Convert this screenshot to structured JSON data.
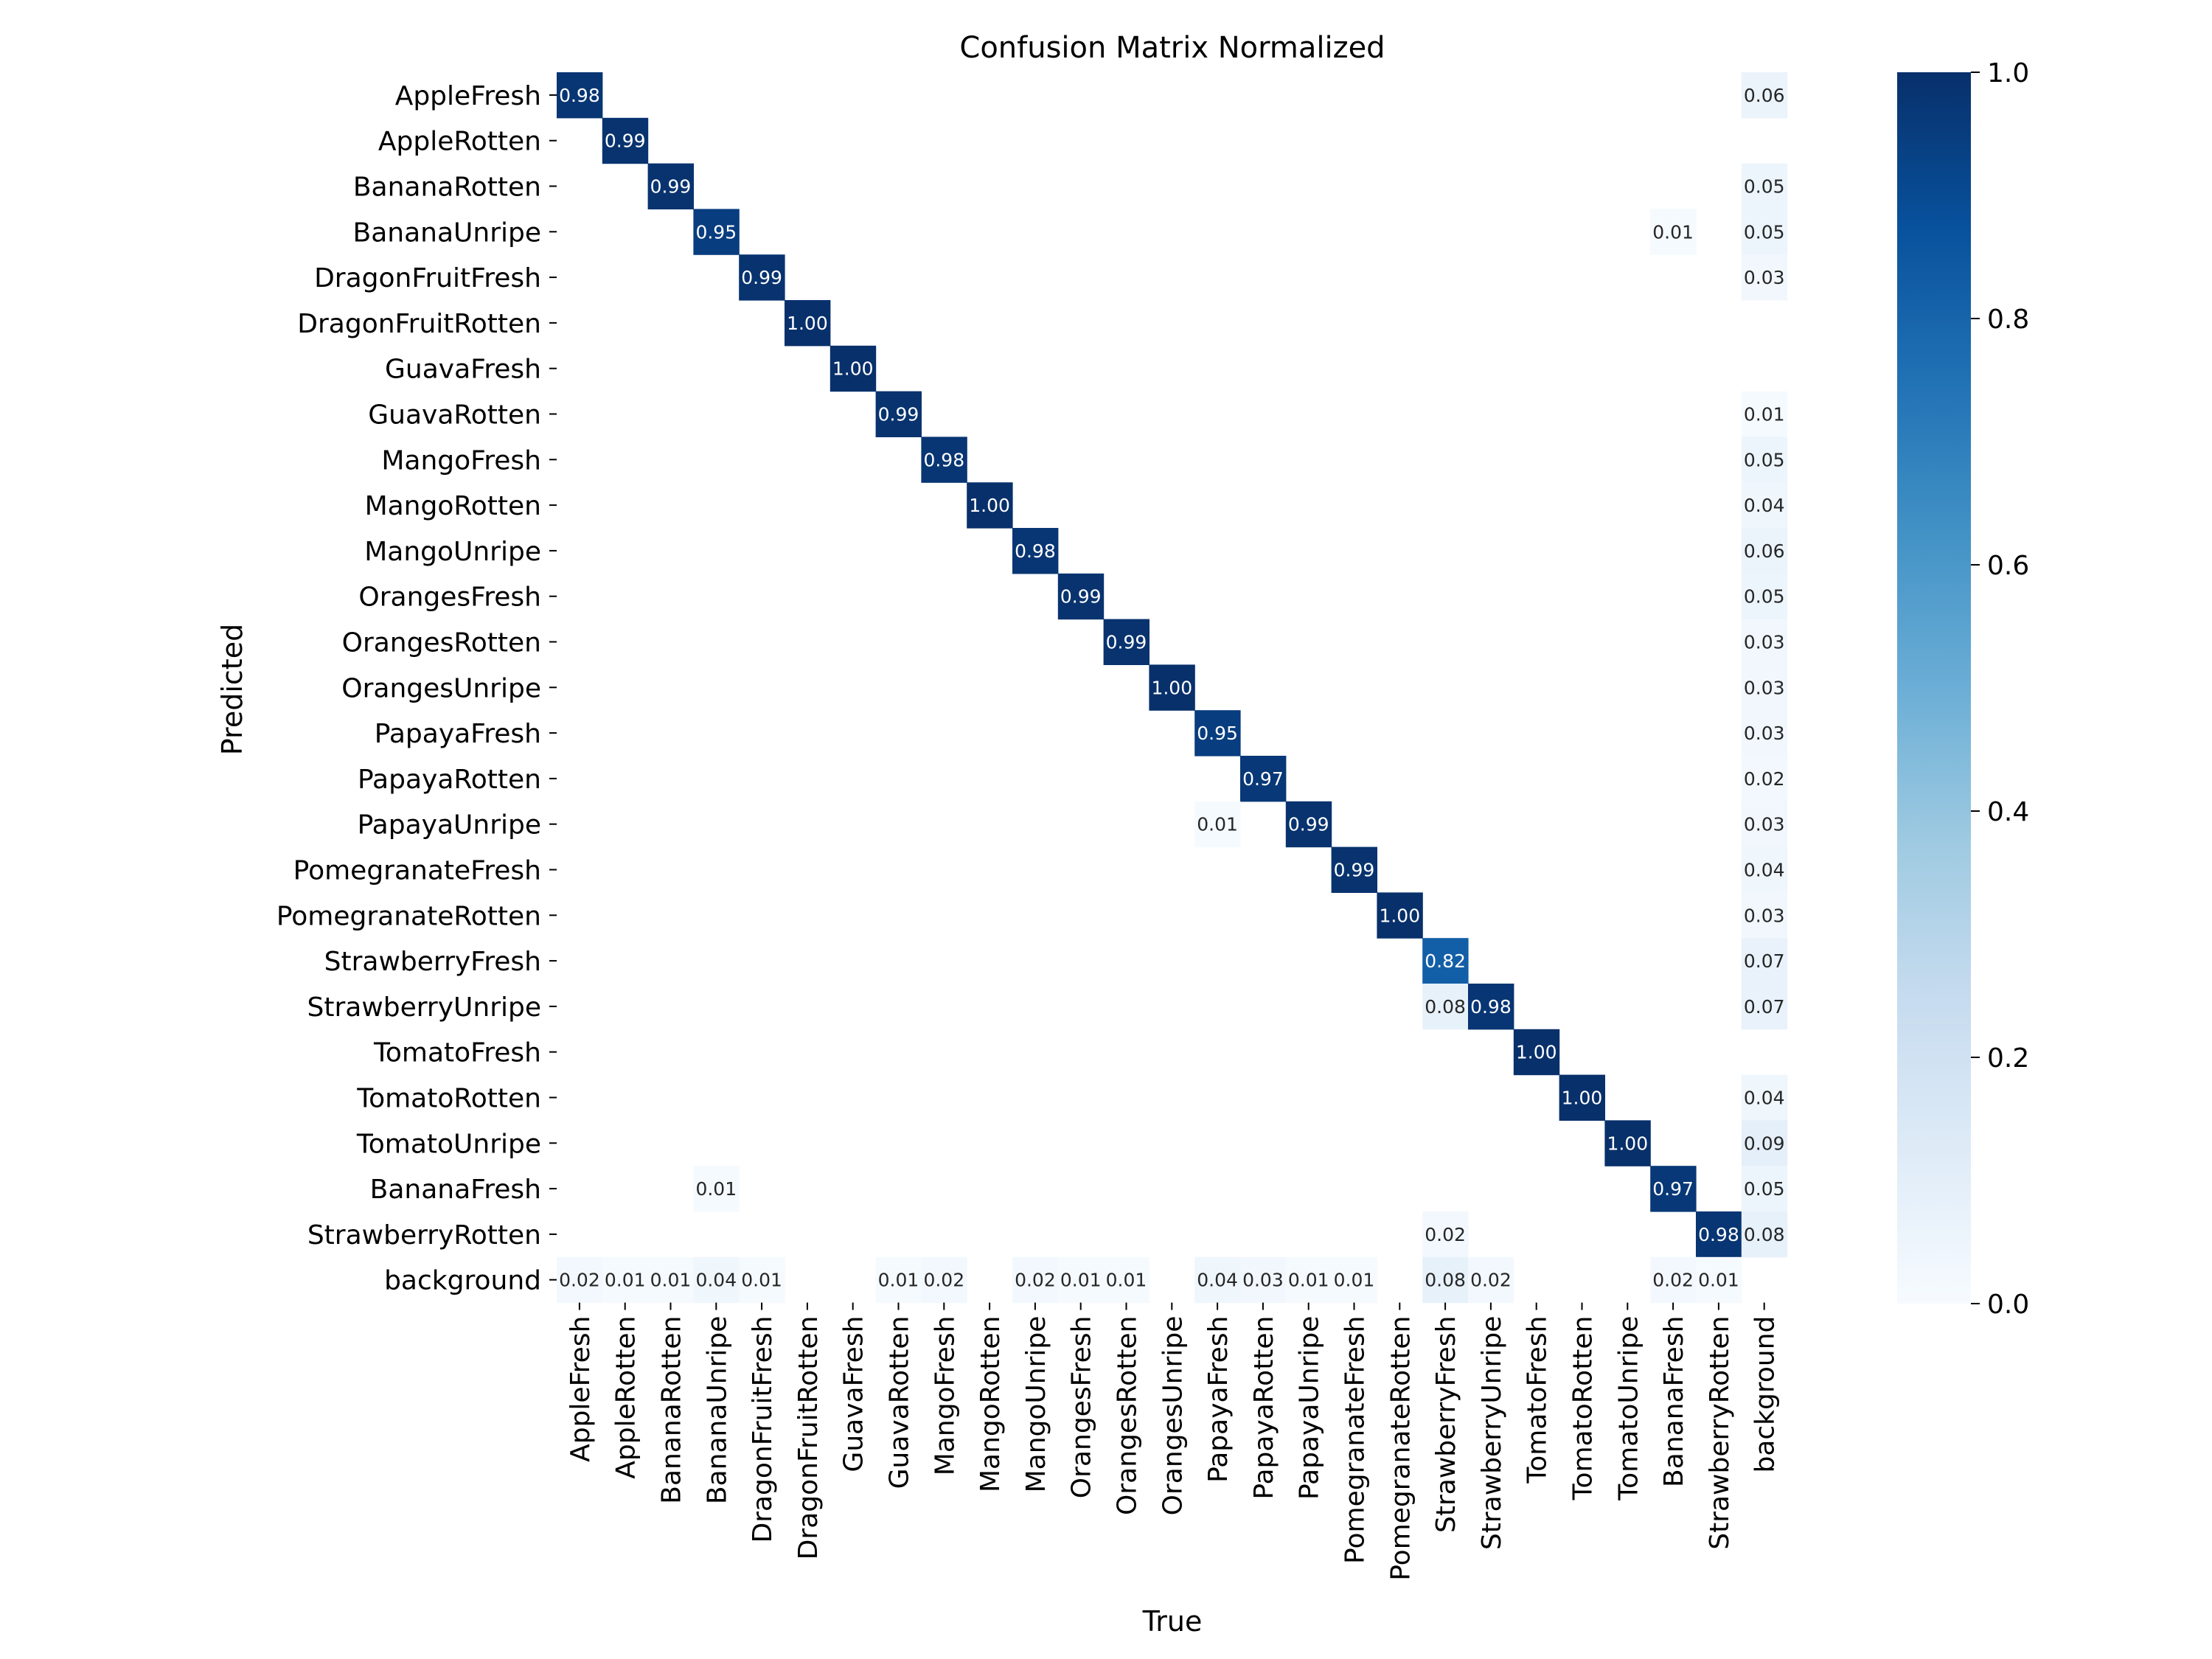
{
  "chart_data": {
    "type": "heatmap",
    "title": "Confusion Matrix Normalized",
    "xlabel": "True",
    "ylabel": "Predicted",
    "x_categories": [
      "AppleFresh",
      "AppleRotten",
      "BananaRotten",
      "BananaUnripe",
      "DragonFruitFresh",
      "DragonFruitRotten",
      "GuavaFresh",
      "GuavaRotten",
      "MangoFresh",
      "MangoRotten",
      "MangoUnripe",
      "OrangesFresh",
      "OrangesRotten",
      "OrangesUnripe",
      "PapayaFresh",
      "PapayaRotten",
      "PapayaUnripe",
      "PomegranateFresh",
      "PomegranateRotten",
      "StrawberryFresh",
      "StrawberryUnripe",
      "TomatoFresh",
      "TomatoRotten",
      "TomatoUnripe",
      "BananaFresh",
      "StrawberryRotten",
      "background"
    ],
    "y_categories": [
      "AppleFresh",
      "AppleRotten",
      "BananaRotten",
      "BananaUnripe",
      "DragonFruitFresh",
      "DragonFruitRotten",
      "GuavaFresh",
      "GuavaRotten",
      "MangoFresh",
      "MangoRotten",
      "MangoUnripe",
      "OrangesFresh",
      "OrangesRotten",
      "OrangesUnripe",
      "PapayaFresh",
      "PapayaRotten",
      "PapayaUnripe",
      "PomegranateFresh",
      "PomegranateRotten",
      "StrawberryFresh",
      "StrawberryUnripe",
      "TomatoFresh",
      "TomatoRotten",
      "TomatoUnripe",
      "BananaFresh",
      "StrawberryRotten",
      "background"
    ],
    "values": [
      [
        0.98,
        null,
        null,
        null,
        null,
        null,
        null,
        null,
        null,
        null,
        null,
        null,
        null,
        null,
        null,
        null,
        null,
        null,
        null,
        null,
        null,
        null,
        null,
        null,
        null,
        null,
        0.06
      ],
      [
        null,
        0.99,
        null,
        null,
        null,
        null,
        null,
        null,
        null,
        null,
        null,
        null,
        null,
        null,
        null,
        null,
        null,
        null,
        null,
        null,
        null,
        null,
        null,
        null,
        null,
        null,
        null
      ],
      [
        null,
        null,
        0.99,
        null,
        null,
        null,
        null,
        null,
        null,
        null,
        null,
        null,
        null,
        null,
        null,
        null,
        null,
        null,
        null,
        null,
        null,
        null,
        null,
        null,
        null,
        null,
        0.05
      ],
      [
        null,
        null,
        null,
        0.95,
        null,
        null,
        null,
        null,
        null,
        null,
        null,
        null,
        null,
        null,
        null,
        null,
        null,
        null,
        null,
        null,
        null,
        null,
        null,
        null,
        0.01,
        null,
        0.05
      ],
      [
        null,
        null,
        null,
        null,
        0.99,
        null,
        null,
        null,
        null,
        null,
        null,
        null,
        null,
        null,
        null,
        null,
        null,
        null,
        null,
        null,
        null,
        null,
        null,
        null,
        null,
        null,
        0.03
      ],
      [
        null,
        null,
        null,
        null,
        null,
        1.0,
        null,
        null,
        null,
        null,
        null,
        null,
        null,
        null,
        null,
        null,
        null,
        null,
        null,
        null,
        null,
        null,
        null,
        null,
        null,
        null,
        null
      ],
      [
        null,
        null,
        null,
        null,
        null,
        null,
        1.0,
        null,
        null,
        null,
        null,
        null,
        null,
        null,
        null,
        null,
        null,
        null,
        null,
        null,
        null,
        null,
        null,
        null,
        null,
        null,
        null
      ],
      [
        null,
        null,
        null,
        null,
        null,
        null,
        null,
        0.99,
        null,
        null,
        null,
        null,
        null,
        null,
        null,
        null,
        null,
        null,
        null,
        null,
        null,
        null,
        null,
        null,
        null,
        null,
        0.01
      ],
      [
        null,
        null,
        null,
        null,
        null,
        null,
        null,
        null,
        0.98,
        null,
        null,
        null,
        null,
        null,
        null,
        null,
        null,
        null,
        null,
        null,
        null,
        null,
        null,
        null,
        null,
        null,
        0.05
      ],
      [
        null,
        null,
        null,
        null,
        null,
        null,
        null,
        null,
        null,
        1.0,
        null,
        null,
        null,
        null,
        null,
        null,
        null,
        null,
        null,
        null,
        null,
        null,
        null,
        null,
        null,
        null,
        0.04
      ],
      [
        null,
        null,
        null,
        null,
        null,
        null,
        null,
        null,
        null,
        null,
        0.98,
        null,
        null,
        null,
        null,
        null,
        null,
        null,
        null,
        null,
        null,
        null,
        null,
        null,
        null,
        null,
        0.06
      ],
      [
        null,
        null,
        null,
        null,
        null,
        null,
        null,
        null,
        null,
        null,
        null,
        0.99,
        null,
        null,
        null,
        null,
        null,
        null,
        null,
        null,
        null,
        null,
        null,
        null,
        null,
        null,
        0.05
      ],
      [
        null,
        null,
        null,
        null,
        null,
        null,
        null,
        null,
        null,
        null,
        null,
        null,
        0.99,
        null,
        null,
        null,
        null,
        null,
        null,
        null,
        null,
        null,
        null,
        null,
        null,
        null,
        0.03
      ],
      [
        null,
        null,
        null,
        null,
        null,
        null,
        null,
        null,
        null,
        null,
        null,
        null,
        null,
        1.0,
        null,
        null,
        null,
        null,
        null,
        null,
        null,
        null,
        null,
        null,
        null,
        null,
        0.03
      ],
      [
        null,
        null,
        null,
        null,
        null,
        null,
        null,
        null,
        null,
        null,
        null,
        null,
        null,
        null,
        0.95,
        null,
        null,
        null,
        null,
        null,
        null,
        null,
        null,
        null,
        null,
        null,
        0.03
      ],
      [
        null,
        null,
        null,
        null,
        null,
        null,
        null,
        null,
        null,
        null,
        null,
        null,
        null,
        null,
        null,
        0.97,
        null,
        null,
        null,
        null,
        null,
        null,
        null,
        null,
        null,
        null,
        0.02
      ],
      [
        null,
        null,
        null,
        null,
        null,
        null,
        null,
        null,
        null,
        null,
        null,
        null,
        null,
        null,
        0.01,
        null,
        0.99,
        null,
        null,
        null,
        null,
        null,
        null,
        null,
        null,
        null,
        0.03
      ],
      [
        null,
        null,
        null,
        null,
        null,
        null,
        null,
        null,
        null,
        null,
        null,
        null,
        null,
        null,
        null,
        null,
        null,
        0.99,
        null,
        null,
        null,
        null,
        null,
        null,
        null,
        null,
        0.04
      ],
      [
        null,
        null,
        null,
        null,
        null,
        null,
        null,
        null,
        null,
        null,
        null,
        null,
        null,
        null,
        null,
        null,
        null,
        null,
        1.0,
        null,
        null,
        null,
        null,
        null,
        null,
        null,
        0.03
      ],
      [
        null,
        null,
        null,
        null,
        null,
        null,
        null,
        null,
        null,
        null,
        null,
        null,
        null,
        null,
        null,
        null,
        null,
        null,
        null,
        0.82,
        null,
        null,
        null,
        null,
        null,
        null,
        0.07
      ],
      [
        null,
        null,
        null,
        null,
        null,
        null,
        null,
        null,
        null,
        null,
        null,
        null,
        null,
        null,
        null,
        null,
        null,
        null,
        null,
        0.08,
        0.98,
        null,
        null,
        null,
        null,
        null,
        0.07
      ],
      [
        null,
        null,
        null,
        null,
        null,
        null,
        null,
        null,
        null,
        null,
        null,
        null,
        null,
        null,
        null,
        null,
        null,
        null,
        null,
        null,
        null,
        1.0,
        null,
        null,
        null,
        null,
        null
      ],
      [
        null,
        null,
        null,
        null,
        null,
        null,
        null,
        null,
        null,
        null,
        null,
        null,
        null,
        null,
        null,
        null,
        null,
        null,
        null,
        null,
        null,
        null,
        1.0,
        null,
        null,
        null,
        0.04
      ],
      [
        null,
        null,
        null,
        null,
        null,
        null,
        null,
        null,
        null,
        null,
        null,
        null,
        null,
        null,
        null,
        null,
        null,
        null,
        null,
        null,
        null,
        null,
        null,
        1.0,
        null,
        null,
        0.09
      ],
      [
        null,
        null,
        null,
        0.01,
        null,
        null,
        null,
        null,
        null,
        null,
        null,
        null,
        null,
        null,
        null,
        null,
        null,
        null,
        null,
        null,
        null,
        null,
        null,
        null,
        0.97,
        null,
        0.05
      ],
      [
        null,
        null,
        null,
        null,
        null,
        null,
        null,
        null,
        null,
        null,
        null,
        null,
        null,
        null,
        null,
        null,
        null,
        null,
        null,
        0.02,
        null,
        null,
        null,
        null,
        null,
        0.98,
        0.08
      ],
      [
        0.02,
        0.01,
        0.01,
        0.04,
        0.01,
        null,
        null,
        0.01,
        0.02,
        null,
        0.02,
        0.01,
        0.01,
        null,
        0.04,
        0.03,
        0.01,
        0.01,
        null,
        0.08,
        0.02,
        null,
        null,
        null,
        0.02,
        0.01,
        null
      ]
    ],
    "colorbar": {
      "min": 0.0,
      "max": 1.0,
      "ticks": [
        "0.0",
        "0.2",
        "0.4",
        "0.6",
        "0.8",
        "1.0"
      ],
      "colormap": "Blues"
    },
    "colors": {
      "low": "#f7fbff",
      "high": "#08306b",
      "text_light": "#ffffff",
      "text_dark": "#262626"
    }
  }
}
